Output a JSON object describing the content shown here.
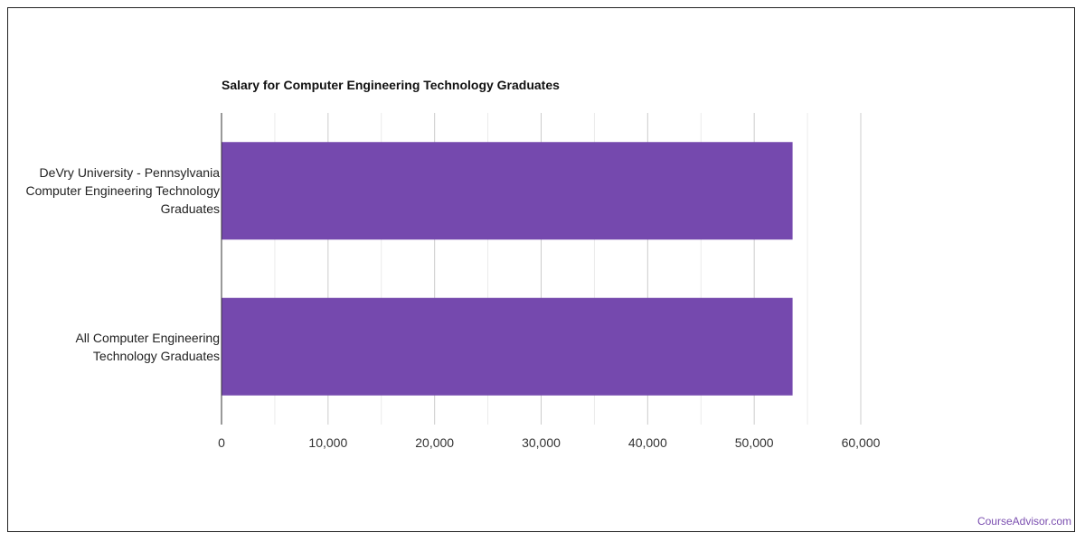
{
  "chart_data": {
    "type": "bar",
    "orientation": "horizontal",
    "title": "Salary for Computer Engineering Technology Graduates",
    "categories": [
      "DeVry University - Pennsylvania Computer Engineering Technology Graduates",
      "All Computer Engineering Technology Graduates"
    ],
    "category_lines": [
      [
        "DeVry University - Pennsylvania",
        "Computer Engineering Technology",
        "Graduates"
      ],
      [
        "All Computer Engineering",
        "Technology Graduates"
      ]
    ],
    "values": [
      53600,
      53600
    ],
    "xlim": [
      0,
      60000
    ],
    "xticks": [
      0,
      10000,
      20000,
      30000,
      40000,
      50000,
      60000
    ],
    "xtick_labels": [
      "0",
      "10,000",
      "20,000",
      "30,000",
      "40,000",
      "50,000",
      "60,000"
    ],
    "xlabel": "",
    "ylabel": "",
    "grid": true,
    "bar_color": "#7549ae"
  },
  "watermark": "CourseAdvisor.com"
}
